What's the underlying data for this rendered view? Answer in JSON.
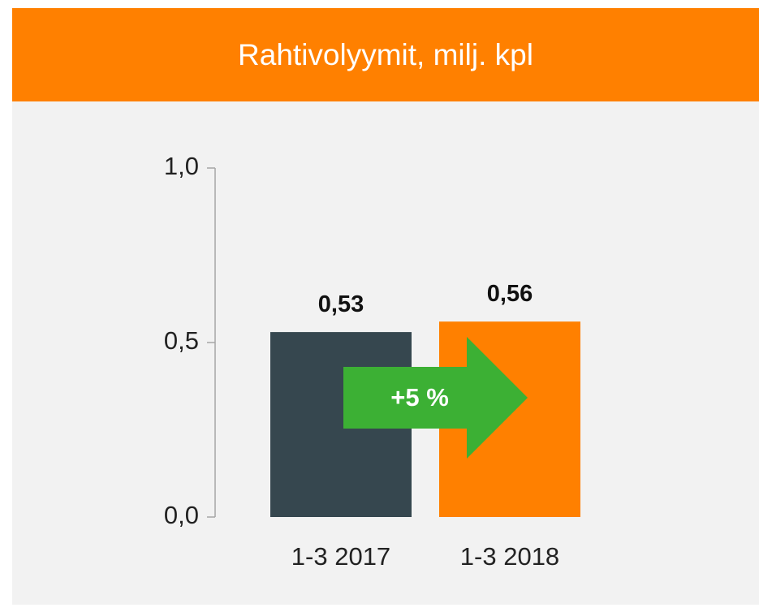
{
  "chart_data": {
    "type": "bar",
    "title": "Rahtivolyymit, milj. kpl",
    "categories": [
      "1-3 2017",
      "1-3 2018"
    ],
    "values": [
      0.53,
      0.56
    ],
    "value_labels": [
      "0,53",
      "0,56"
    ],
    "colors": [
      "#36474f",
      "#ff8000"
    ],
    "ylim": [
      0,
      1
    ],
    "yticks": [
      {
        "value": 0,
        "label": "0,0"
      },
      {
        "value": 0.5,
        "label": "0,5"
      },
      {
        "value": 1,
        "label": "1,0"
      }
    ],
    "annotation": "+5 %",
    "annotation_color": "#3cb034"
  }
}
